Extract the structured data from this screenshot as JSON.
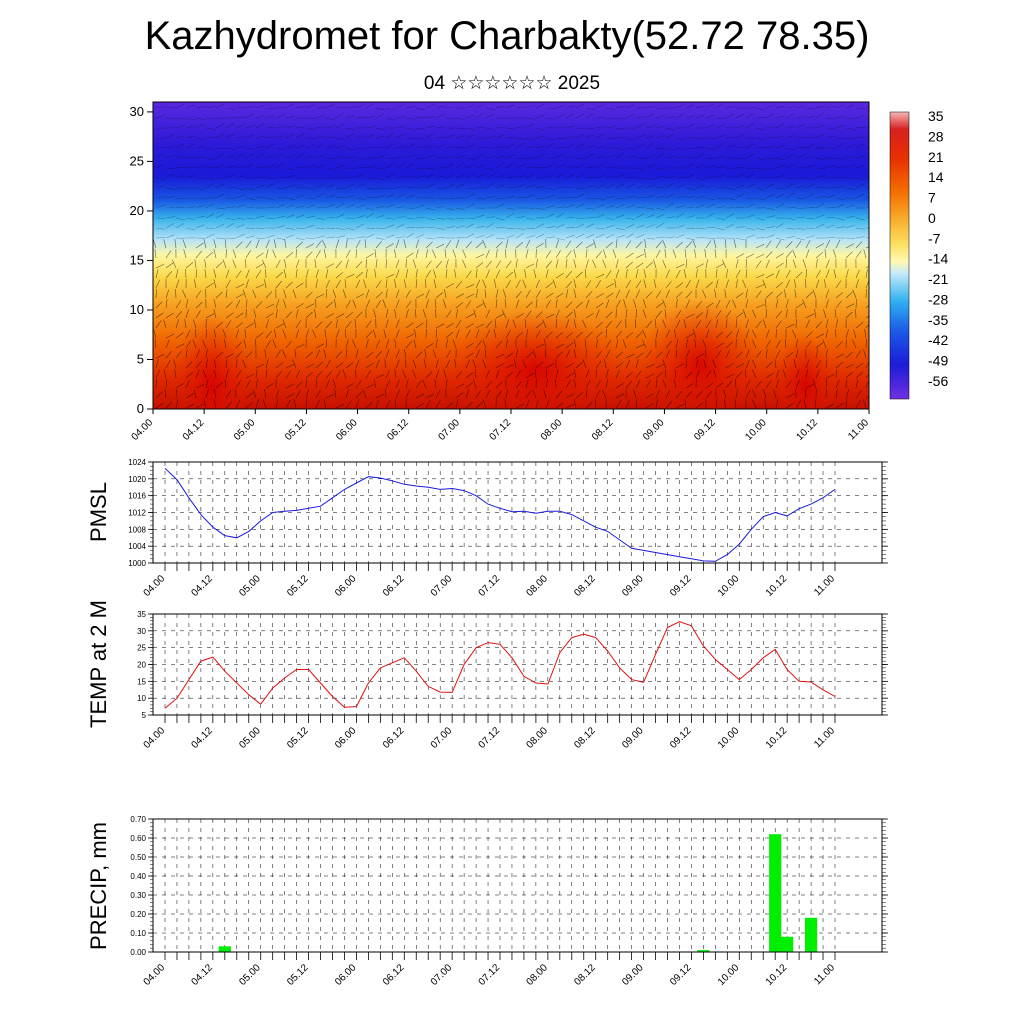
{
  "header": {
    "title": "Kazhydromet for Charbakty(52.72 78.35)",
    "subtitle": "04 ☆☆☆☆☆☆ 2025"
  },
  "colors": {
    "pmsl_line": "#1a1adc",
    "temp_line": "#e01010",
    "precip_bar": "#00ee00"
  },
  "chart_data": [
    {
      "type": "heatmap",
      "name": "cross-section",
      "x_ticks": [
        "04.00",
        "04.12",
        "05.00",
        "05.12",
        "06.00",
        "06.12",
        "07.00",
        "07.12",
        "08.00",
        "08.12",
        "09.00",
        "09.12",
        "10.00",
        "10.12",
        "11.00"
      ],
      "y_ticks": [
        "0",
        "5",
        "10",
        "15",
        "20",
        "25",
        "30"
      ],
      "ylim": [
        0,
        31
      ],
      "colorbar_labels": [
        "35",
        "28",
        "21",
        "14",
        "7",
        "0",
        "-7",
        "-14",
        "-21",
        "-28",
        "-35",
        "-42",
        "-49",
        "-56"
      ]
    },
    {
      "type": "line",
      "name": "pmsl",
      "ylabel": "PMSL",
      "ylim": [
        1000,
        1024
      ],
      "y_ticks": [
        "1024",
        "1020",
        "1016",
        "1012",
        "1008",
        "1004",
        "1000"
      ],
      "x_ticks": [
        "04.00",
        "04.12",
        "05.00",
        "05.12",
        "06.00",
        "06.12",
        "07.00",
        "07.12",
        "08.00",
        "08.12",
        "09.00",
        "09.12",
        "10.00",
        "10.12",
        "11.00"
      ],
      "x": [
        0,
        3,
        6,
        9,
        12,
        15,
        18,
        21,
        24,
        27,
        30,
        33,
        36,
        39,
        42,
        45,
        48,
        51,
        54,
        57,
        60,
        63,
        66,
        69,
        72,
        75,
        78,
        81,
        84,
        87,
        90,
        93,
        96,
        99,
        102,
        105,
        108,
        111,
        114,
        117,
        120,
        123,
        126,
        129,
        132,
        135,
        138,
        141,
        144,
        147,
        150,
        153,
        156,
        159,
        162,
        165,
        168
      ],
      "values": [
        1022.5,
        1019.8,
        1015.5,
        1011.5,
        1008.5,
        1006.5,
        1006.0,
        1007.5,
        1010.0,
        1012.0,
        1012.3,
        1012.5,
        1013.0,
        1013.5,
        1015.5,
        1017.5,
        1019.0,
        1020.5,
        1020.2,
        1019.5,
        1018.7,
        1018.3,
        1018.0,
        1017.5,
        1017.7,
        1017.2,
        1016.0,
        1014.0,
        1013.0,
        1012.2,
        1012.3,
        1011.8,
        1012.3,
        1012.3,
        1011.5,
        1010.0,
        1008.5,
        1007.5,
        1005.5,
        1003.5,
        1003.0,
        1002.5,
        1002.0,
        1001.5,
        1001.0,
        1000.5,
        1000.4,
        1002.0,
        1004.5,
        1008.0,
        1011.0,
        1012.0,
        1011.2,
        1012.9,
        1014.0,
        1015.5,
        1017.5
      ]
    },
    {
      "type": "line",
      "name": "temp",
      "ylabel": "TEMP at 2 M",
      "ylim": [
        5,
        35
      ],
      "y_ticks": [
        "35",
        "30",
        "25",
        "20",
        "15",
        "10",
        "5"
      ],
      "x_ticks": [
        "04.00",
        "04.12",
        "05.00",
        "05.12",
        "06.00",
        "06.12",
        "07.00",
        "07.12",
        "08.00",
        "08.12",
        "09.00",
        "09.12",
        "10.00",
        "10.12",
        "11.00"
      ],
      "x": [
        0,
        3,
        6,
        9,
        12,
        15,
        18,
        21,
        24,
        27,
        30,
        33,
        36,
        39,
        42,
        45,
        48,
        51,
        54,
        57,
        60,
        63,
        66,
        69,
        72,
        75,
        78,
        81,
        84,
        87,
        90,
        93,
        96,
        99,
        102,
        105,
        108,
        111,
        114,
        117,
        120,
        123,
        126,
        129,
        132,
        135,
        138,
        141,
        144,
        147,
        150,
        153,
        156,
        159,
        162,
        165,
        168
      ],
      "values": [
        7.0,
        10.0,
        15.5,
        21.0,
        22.2,
        18.0,
        14.5,
        11.0,
        8.2,
        13.0,
        16.0,
        18.5,
        18.5,
        14.5,
        10.5,
        7.3,
        7.5,
        14.5,
        19.0,
        20.5,
        22.0,
        18.0,
        13.5,
        11.8,
        11.7,
        20.0,
        25.0,
        26.5,
        26.0,
        22.0,
        16.5,
        14.5,
        14.2,
        23.5,
        28.0,
        29.0,
        28.0,
        24.0,
        19.0,
        15.5,
        14.7,
        23.0,
        31.0,
        32.7,
        31.5,
        25.5,
        21.5,
        18.5,
        15.5,
        18.5,
        22.0,
        24.5,
        18.5,
        15.0,
        14.8,
        12.5,
        10.5
      ]
    },
    {
      "type": "bar",
      "name": "precip",
      "ylabel": "PRECIP, mm",
      "ylim": [
        0,
        0.7
      ],
      "y_ticks": [
        "0.70",
        "0.60",
        "0.50",
        "0.40",
        "0.30",
        "0.20",
        "0.10",
        "0.00"
      ],
      "x_ticks": [
        "04.00",
        "04.12",
        "05.00",
        "05.12",
        "06.00",
        "06.12",
        "07.00",
        "07.12",
        "08.00",
        "08.12",
        "09.00",
        "09.12",
        "10.00",
        "10.12",
        "11.00"
      ],
      "x": [
        15,
        135,
        153,
        156,
        162
      ],
      "values": [
        0.03,
        0.01,
        0.62,
        0.08,
        0.18
      ]
    }
  ]
}
